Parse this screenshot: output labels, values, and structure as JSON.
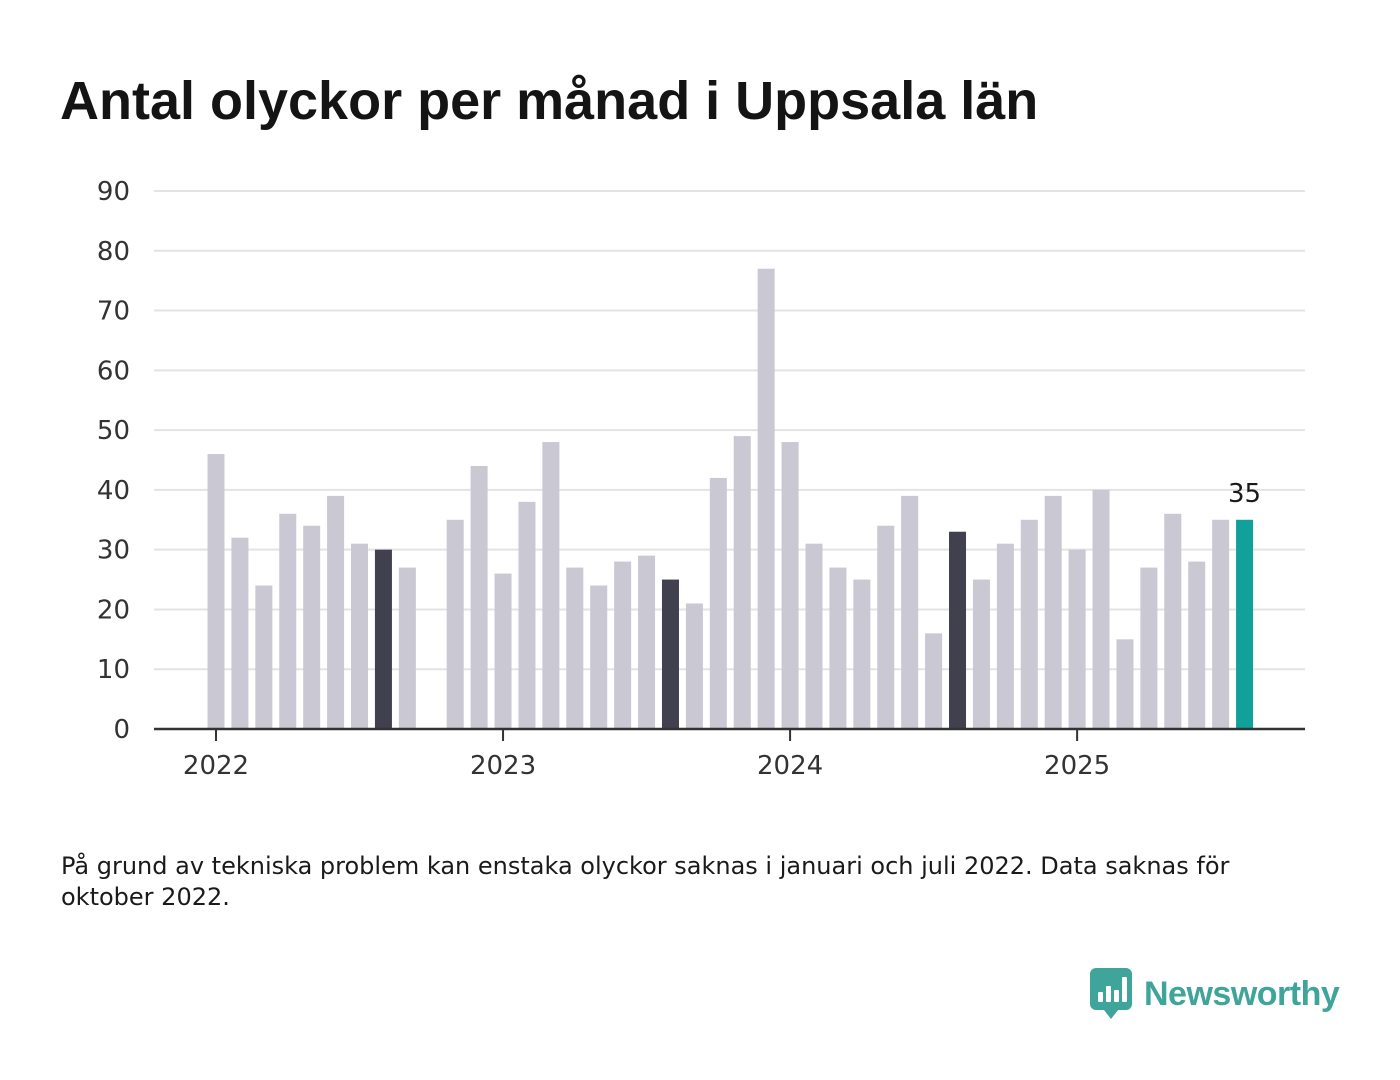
{
  "title": "Antal olyckor per månad i Uppsala län",
  "footnote": "På grund av tekniska problem kan enstaka olyckor saknas i januari och juli 2022. Data saknas för oktober 2022.",
  "brand": {
    "name": "Newsworthy"
  },
  "colors": {
    "bar_default": "#c9c8d3",
    "bar_same_month": "#40404f",
    "bar_latest": "#12a19a",
    "gridline": "#e3e3e3",
    "axis": "#333333",
    "brand": "#3fa49a"
  },
  "chart_data": {
    "type": "bar",
    "title": "Antal olyckor per månad i Uppsala län",
    "xlabel": "",
    "ylabel": "",
    "ylim": [
      0,
      90
    ],
    "yticks": [
      0,
      10,
      20,
      30,
      40,
      50,
      60,
      70,
      80,
      90
    ],
    "grid": true,
    "xtick_labels": [
      "2022",
      "2023",
      "2024",
      "2025"
    ],
    "categories": [
      "2022-01",
      "2022-02",
      "2022-03",
      "2022-04",
      "2022-05",
      "2022-06",
      "2022-07",
      "2022-08",
      "2022-09",
      "2022-10",
      "2022-11",
      "2022-12",
      "2023-01",
      "2023-02",
      "2023-03",
      "2023-04",
      "2023-05",
      "2023-06",
      "2023-07",
      "2023-08",
      "2023-09",
      "2023-10",
      "2023-11",
      "2023-12",
      "2024-01",
      "2024-02",
      "2024-03",
      "2024-04",
      "2024-05",
      "2024-06",
      "2024-07",
      "2024-08",
      "2024-09",
      "2024-10",
      "2024-11",
      "2024-12",
      "2025-01",
      "2025-02",
      "2025-03",
      "2025-04",
      "2025-05",
      "2025-06",
      "2025-07",
      "2025-08"
    ],
    "values": [
      46,
      32,
      24,
      36,
      34,
      39,
      31,
      30,
      27,
      null,
      35,
      44,
      26,
      38,
      48,
      27,
      24,
      28,
      29,
      25,
      21,
      42,
      49,
      77,
      48,
      31,
      27,
      25,
      34,
      39,
      16,
      33,
      25,
      31,
      35,
      39,
      30,
      40,
      15,
      27,
      36,
      28,
      35,
      35
    ],
    "highlight_same_month": [
      "2022-08",
      "2023-08",
      "2024-08"
    ],
    "highlight_latest": "2025-08",
    "value_label": "35"
  }
}
